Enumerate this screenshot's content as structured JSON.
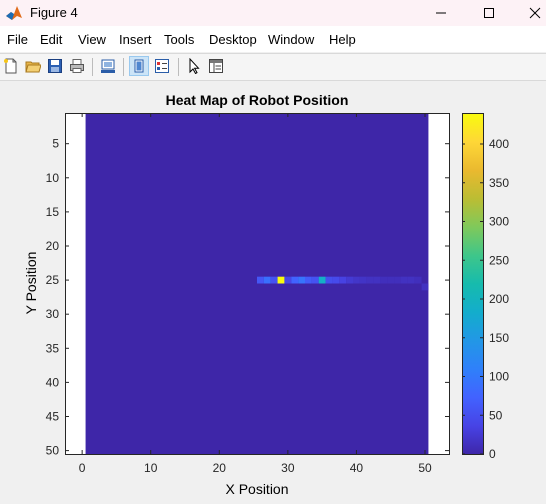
{
  "window": {
    "title": "Figure 4"
  },
  "menu": [
    "File",
    "Edit",
    "View",
    "Insert",
    "Tools",
    "Desktop",
    "Window",
    "Help"
  ],
  "chart_data": {
    "type": "heatmap",
    "title": "Heat Map of Robot Position",
    "xlabel": "X Position",
    "ylabel": "Y Position",
    "xlim": [
      -2.5,
      53.5
    ],
    "ylim": [
      0.5,
      50.5
    ],
    "xticks": [
      0,
      10,
      20,
      30,
      40,
      50
    ],
    "yticks": [
      5,
      10,
      15,
      20,
      25,
      30,
      35,
      40,
      45,
      50
    ],
    "y_direction": "reverse",
    "grid_x_range": [
      1,
      50
    ],
    "grid_y_range": [
      1,
      50
    ],
    "background_value": 0,
    "colormap": "parula",
    "clim": [
      0,
      440
    ],
    "colorbar_ticks": [
      0,
      50,
      100,
      150,
      200,
      250,
      300,
      350,
      400
    ],
    "hot_cells": [
      {
        "x": 26,
        "y": 25,
        "value": 60
      },
      {
        "x": 27,
        "y": 25,
        "value": 90
      },
      {
        "x": 28,
        "y": 25,
        "value": 55
      },
      {
        "x": 29,
        "y": 25,
        "value": 440
      },
      {
        "x": 30,
        "y": 25,
        "value": 40
      },
      {
        "x": 31,
        "y": 25,
        "value": 75
      },
      {
        "x": 32,
        "y": 25,
        "value": 95
      },
      {
        "x": 33,
        "y": 25,
        "value": 65
      },
      {
        "x": 34,
        "y": 25,
        "value": 55
      },
      {
        "x": 35,
        "y": 25,
        "value": 190
      },
      {
        "x": 36,
        "y": 25,
        "value": 50
      },
      {
        "x": 37,
        "y": 25,
        "value": 45
      },
      {
        "x": 38,
        "y": 25,
        "value": 35
      },
      {
        "x": 39,
        "y": 25,
        "value": 25
      },
      {
        "x": 40,
        "y": 25,
        "value": 20
      },
      {
        "x": 41,
        "y": 25,
        "value": 18
      },
      {
        "x": 42,
        "y": 25,
        "value": 15
      },
      {
        "x": 43,
        "y": 25,
        "value": 15
      },
      {
        "x": 44,
        "y": 25,
        "value": 12
      },
      {
        "x": 45,
        "y": 25,
        "value": 12
      },
      {
        "x": 46,
        "y": 25,
        "value": 12
      },
      {
        "x": 47,
        "y": 25,
        "value": 15
      },
      {
        "x": 48,
        "y": 25,
        "value": 15
      },
      {
        "x": 49,
        "y": 25,
        "value": 12
      },
      {
        "x": 50,
        "y": 26,
        "value": 15
      }
    ]
  }
}
